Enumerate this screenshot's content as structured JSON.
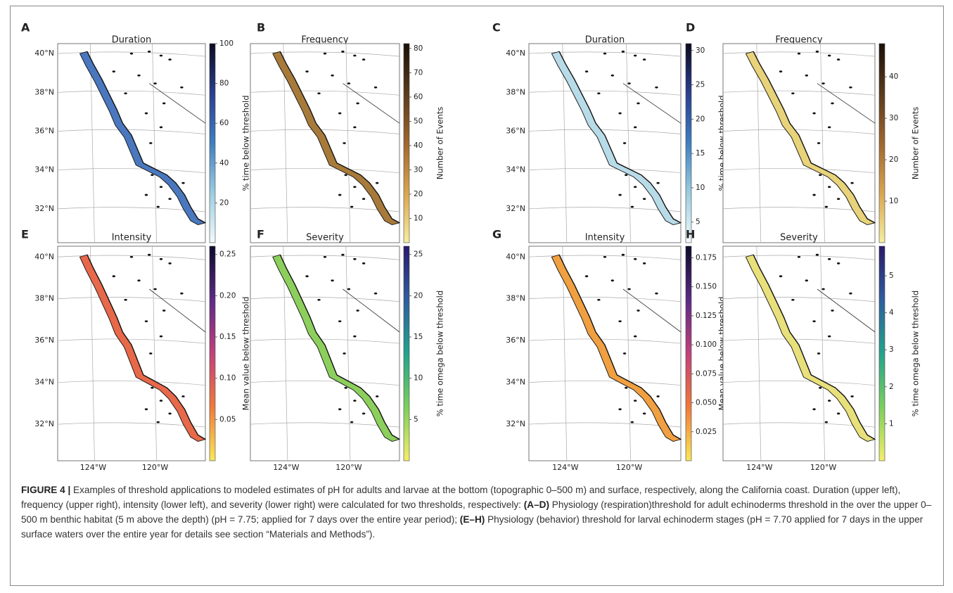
{
  "figure": {
    "panels": [
      {
        "letter": "A",
        "title": "Duration",
        "colorbar": {
          "label": "% time below threshold",
          "lim": [
            0,
            100
          ],
          "ticks": [
            20,
            40,
            60,
            80,
            100
          ]
        },
        "lat_labels": [
          "40°N",
          "38°N",
          "36°N",
          "34°N",
          "32°N"
        ]
      },
      {
        "letter": "B",
        "title": "Frequency",
        "colorbar": {
          "label": "Number of Events",
          "lim": [
            0,
            82
          ],
          "ticks": [
            10,
            20,
            30,
            40,
            50,
            60,
            70,
            80
          ]
        }
      },
      {
        "letter": "C",
        "title": "Duration",
        "colorbar": {
          "label": "% time below threshold",
          "lim": [
            2,
            31
          ],
          "ticks": [
            5,
            10,
            15,
            20,
            25,
            30
          ]
        },
        "lat_labels": [
          "40°N",
          "38°N",
          "36°N",
          "34°N",
          "32°N"
        ]
      },
      {
        "letter": "D",
        "title": "Frequency",
        "colorbar": {
          "label": "Number of Events",
          "lim": [
            0,
            48
          ],
          "ticks": [
            10,
            20,
            30,
            40
          ]
        }
      },
      {
        "letter": "E",
        "title": "Intensity",
        "colorbar": {
          "label": "Mean value below threshold",
          "lim": [
            0,
            0.26
          ],
          "ticks": [
            0.05,
            {
              "value": 0.1,
              "label": "0.10"
            },
            0.15,
            {
              "value": 0.2,
              "label": "0.20"
            },
            0.25
          ]
        },
        "lat_labels": [
          "40°N",
          "38°N",
          "36°N",
          "34°N",
          "32°N"
        ],
        "lon_labels": [
          "124°W",
          "120°W"
        ]
      },
      {
        "letter": "F",
        "title": "Severity",
        "colorbar": {
          "label": "% time omega below threshold",
          "lim": [
            0,
            26
          ],
          "ticks": [
            5,
            10,
            15,
            20,
            25
          ]
        },
        "lon_labels": [
          "124°W",
          "120°W"
        ]
      },
      {
        "letter": "G",
        "title": "Intensity",
        "colorbar": {
          "label": "Mean value below threshold",
          "lim": [
            0,
            0.185
          ],
          "ticks": [
            0.025,
            {
              "value": 0.05,
              "label": "0.050"
            },
            0.075,
            {
              "value": 0.1,
              "label": "0.100"
            },
            0.125,
            {
              "value": 0.15,
              "label": "0.150"
            },
            0.175
          ]
        },
        "lat_labels": [
          "40°N",
          "38°N",
          "36°N",
          "34°N",
          "32°N"
        ],
        "lon_labels": [
          "124°W",
          "120°W"
        ]
      },
      {
        "letter": "H",
        "title": "Severity",
        "colorbar": {
          "label": "% time omega below threshold",
          "lim": [
            0,
            5.8
          ],
          "ticks": [
            1,
            2,
            3,
            4,
            5
          ]
        },
        "lon_labels": [
          "124°W",
          "120°W"
        ]
      }
    ],
    "caption": {
      "label": "FIGURE 4 |",
      "text": " Examples of threshold applications to modeled estimates of pH for adults and larvae at the bottom (topographic 0–500 m) and surface, respectively, along the California coast. Duration (upper left), frequency (upper right), intensity (lower left), and severity (lower right) were calculated for two thresholds, respectively: ",
      "part1_label": "(A–D)",
      "part1_text": " Physiology (respiration)threshold for adult echinoderms threshold in the over the upper 0–500 m benthic habitat (5 m above the depth) (pH = 7.75; applied for 7 days over the entire year period); ",
      "part2_label": "(E–H)",
      "part2_text": " Physiology (behavior) threshold for larval echinoderm stages (pH = 7.70 applied for 7 days in the upper surface waters over the entire year for details see section “Materials and Methods”)."
    }
  }
}
